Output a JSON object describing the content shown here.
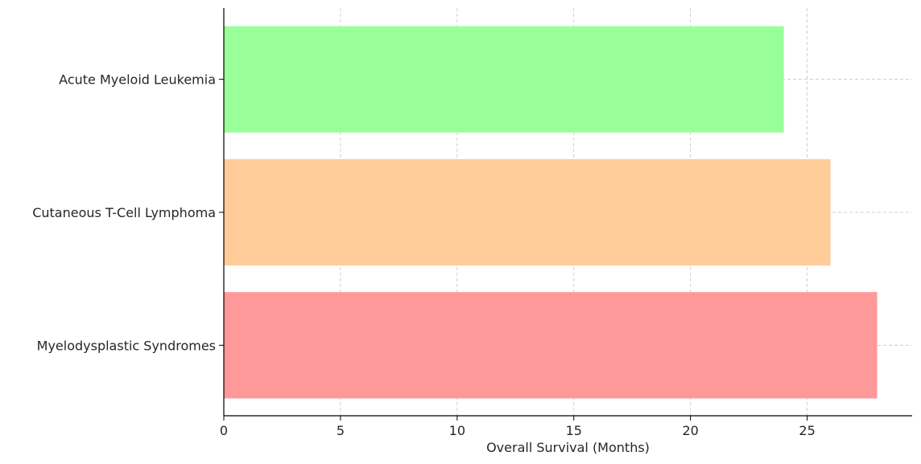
{
  "chart_data": {
    "type": "bar",
    "orientation": "horizontal",
    "title": "",
    "xlabel": "Overall Survival (Months)",
    "ylabel": "",
    "categories": [
      "Myelodysplastic Syndromes",
      "Cutaneous T-Cell Lymphoma",
      "Acute Myeloid Leukemia"
    ],
    "values": [
      28,
      26,
      24
    ],
    "colors": [
      "#ff9999",
      "#ffcc99",
      "#99ff99"
    ],
    "xlim": [
      0,
      29.5
    ],
    "xticks": [
      0,
      5,
      10,
      15,
      20,
      25
    ],
    "grid": true
  }
}
